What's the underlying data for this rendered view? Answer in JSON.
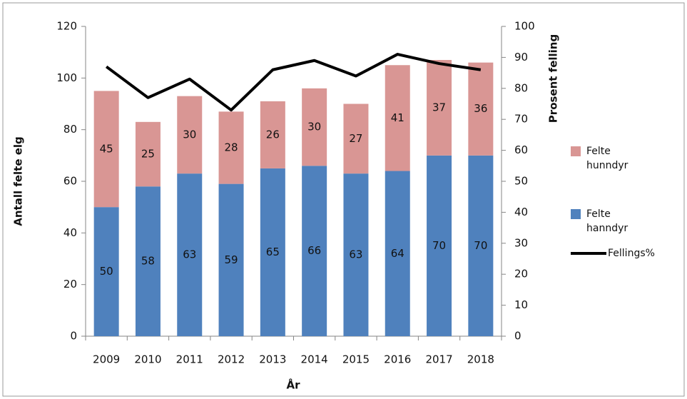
{
  "chart_data": {
    "type": "bar",
    "stacked": true,
    "legend": "right",
    "x_label": "År",
    "y_label": "Antall felte elg",
    "y2_label": "Prosent felling",
    "categories": [
      "2009",
      "2010",
      "2011",
      "2012",
      "2013",
      "2014",
      "2015",
      "2016",
      "2017",
      "2018"
    ],
    "ylim": [
      0,
      120
    ],
    "yticks": [
      0,
      20,
      40,
      60,
      80,
      100,
      120
    ],
    "y2lim": [
      0,
      100
    ],
    "y2ticks": [
      0,
      10,
      20,
      30,
      40,
      50,
      60,
      70,
      80,
      90,
      100
    ],
    "series": [
      {
        "name": "Felte hanndyr",
        "color": "#4f81bd",
        "values": [
          50,
          58,
          63,
          59,
          65,
          66,
          63,
          64,
          70,
          70
        ]
      },
      {
        "name": "Felte hunndyr",
        "color": "#d99694",
        "values": [
          45,
          25,
          30,
          28,
          26,
          30,
          27,
          41,
          37,
          36
        ]
      },
      {
        "name": "Fellings%",
        "type": "line",
        "axis": "y2",
        "color": "#000000",
        "values": [
          87,
          77,
          83,
          73,
          86,
          89,
          84,
          91,
          88,
          86
        ]
      }
    ]
  }
}
